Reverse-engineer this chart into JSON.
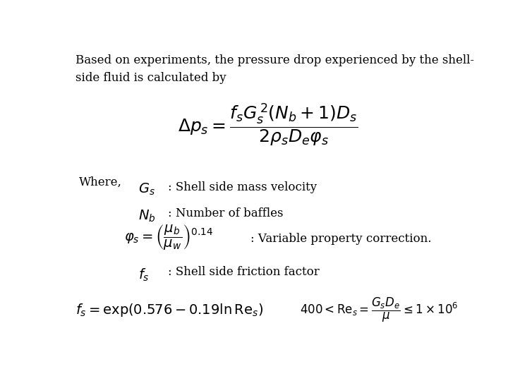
{
  "background_color": "#ffffff",
  "text_color": "#000000",
  "title_text": "Based on experiments, the pressure drop experienced by the shell-\nside fluid is calculated by",
  "main_formula": "\\Delta p_s = \\dfrac{f_s G_s^{\\,2}(N_b+1)D_s}{2\\rho_s D_e \\varphi_s}",
  "where_text": "Where,",
  "item1_formula": "$G_s$",
  "item1_text": ": Shell side mass velocity",
  "item2_formula": "$N_b$",
  "item2_text": ": Number of baffles",
  "item3_formula": "$\\varphi_s = \\left(\\dfrac{\\mu_b}{\\mu_w}\\right)^{0.14}$",
  "item3_text": ": Variable property correction.",
  "item4_formula": "$f_s$",
  "item4_text": ": Shell side friction factor",
  "bottom_formula1": "$f_s = \\exp(0.576 - 0.19\\ln \\mathrm{Re}_s)$",
  "bottom_formula2": "$400 < \\mathrm{Re}_s = \\dfrac{G_s D_e}{\\mu} \\leq 1 \\times 10^6$",
  "figsize": [
    7.2,
    5.4
  ],
  "dpi": 100
}
